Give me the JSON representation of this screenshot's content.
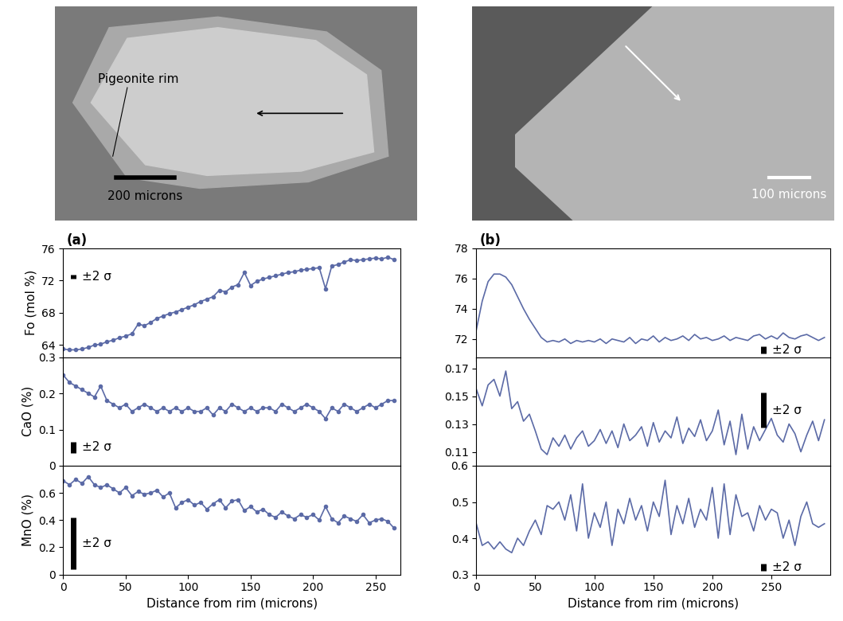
{
  "images": [
    {
      "annotation": "Pigeonite rim",
      "scale_bar": "200 microns"
    },
    {
      "scale_bar": "100 microns"
    }
  ],
  "chart_data": [
    {
      "type": "line",
      "title": "(a)",
      "y_label": "Fo (mol %)",
      "color": "#5b6aa6",
      "marker": "o",
      "xlim": [
        0,
        270
      ],
      "xticks": [
        0,
        50,
        100,
        150,
        200,
        250
      ],
      "ylim": [
        62.5,
        76
      ],
      "yticks": [
        64,
        68,
        72,
        76
      ],
      "error_bar": {
        "label": "±2 σ",
        "value": 0.5
      },
      "x": [
        0,
        5,
        10,
        15,
        20,
        25,
        30,
        35,
        40,
        45,
        50,
        55,
        60,
        65,
        70,
        75,
        80,
        85,
        90,
        95,
        100,
        105,
        110,
        115,
        120,
        125,
        130,
        135,
        140,
        145,
        150,
        155,
        160,
        165,
        170,
        175,
        180,
        185,
        190,
        195,
        200,
        205,
        210,
        215,
        220,
        225,
        230,
        235,
        240,
        245,
        250,
        255,
        260,
        265
      ],
      "values": [
        63.5,
        63.4,
        63.4,
        63.5,
        63.7,
        64.0,
        64.1,
        64.4,
        64.6,
        64.9,
        65.1,
        65.4,
        66.6,
        66.4,
        66.8,
        67.3,
        67.6,
        67.9,
        68.1,
        68.4,
        68.7,
        69.0,
        69.4,
        69.7,
        70.0,
        70.8,
        70.6,
        71.2,
        71.5,
        73.0,
        71.4,
        71.9,
        72.2,
        72.4,
        72.6,
        72.8,
        73.0,
        73.1,
        73.3,
        73.4,
        73.5,
        73.6,
        71.0,
        73.8,
        74.0,
        74.3,
        74.6,
        74.5,
        74.6,
        74.7,
        74.8,
        74.7,
        74.9,
        74.6
      ]
    },
    {
      "type": "line",
      "y_label": "CaO (%)",
      "color": "#5b6aa6",
      "marker": "o",
      "xlim": [
        0,
        270
      ],
      "xticks": [
        0,
        50,
        100,
        150,
        200,
        250
      ],
      "ylim": [
        0,
        0.3
      ],
      "yticks": [
        0,
        0.1,
        0.2,
        0.3
      ],
      "error_bar": {
        "label": "±2 σ",
        "value": 0.03
      },
      "x": [
        0,
        5,
        10,
        15,
        20,
        25,
        30,
        35,
        40,
        45,
        50,
        55,
        60,
        65,
        70,
        75,
        80,
        85,
        90,
        95,
        100,
        105,
        110,
        115,
        120,
        125,
        130,
        135,
        140,
        145,
        150,
        155,
        160,
        165,
        170,
        175,
        180,
        185,
        190,
        195,
        200,
        205,
        210,
        215,
        220,
        225,
        230,
        235,
        240,
        245,
        250,
        255,
        260,
        265
      ],
      "values": [
        0.25,
        0.23,
        0.22,
        0.21,
        0.2,
        0.19,
        0.22,
        0.18,
        0.17,
        0.16,
        0.17,
        0.15,
        0.16,
        0.17,
        0.16,
        0.15,
        0.16,
        0.15,
        0.16,
        0.15,
        0.16,
        0.15,
        0.15,
        0.16,
        0.14,
        0.16,
        0.15,
        0.17,
        0.16,
        0.15,
        0.16,
        0.15,
        0.16,
        0.16,
        0.15,
        0.17,
        0.16,
        0.15,
        0.16,
        0.17,
        0.16,
        0.15,
        0.13,
        0.16,
        0.15,
        0.17,
        0.16,
        0.15,
        0.16,
        0.17,
        0.16,
        0.17,
        0.18,
        0.18
      ]
    },
    {
      "type": "line",
      "y_label": "MnO (%)",
      "x_label": "Distance from rim (microns)",
      "color": "#5b6aa6",
      "marker": "o",
      "xlim": [
        0,
        270
      ],
      "xticks": [
        0,
        50,
        100,
        150,
        200,
        250
      ],
      "ylim": [
        0,
        0.8
      ],
      "yticks": [
        0,
        0.2,
        0.4,
        0.6
      ],
      "error_bar": {
        "label": "±2 σ",
        "value": 0.38
      },
      "x": [
        0,
        5,
        10,
        15,
        20,
        25,
        30,
        35,
        40,
        45,
        50,
        55,
        60,
        65,
        70,
        75,
        80,
        85,
        90,
        95,
        100,
        105,
        110,
        115,
        120,
        125,
        130,
        135,
        140,
        145,
        150,
        155,
        160,
        165,
        170,
        175,
        180,
        185,
        190,
        195,
        200,
        205,
        210,
        215,
        220,
        225,
        230,
        235,
        240,
        245,
        250,
        255,
        260,
        265
      ],
      "values": [
        0.69,
        0.66,
        0.7,
        0.67,
        0.72,
        0.66,
        0.64,
        0.66,
        0.63,
        0.6,
        0.64,
        0.58,
        0.61,
        0.59,
        0.6,
        0.62,
        0.57,
        0.6,
        0.49,
        0.53,
        0.55,
        0.51,
        0.53,
        0.48,
        0.52,
        0.55,
        0.49,
        0.54,
        0.55,
        0.47,
        0.5,
        0.46,
        0.48,
        0.44,
        0.42,
        0.46,
        0.43,
        0.41,
        0.44,
        0.42,
        0.44,
        0.4,
        0.5,
        0.41,
        0.38,
        0.43,
        0.41,
        0.39,
        0.44,
        0.38,
        0.4,
        0.41,
        0.39,
        0.34
      ]
    },
    {
      "type": "line",
      "title": "(b)",
      "color": "#5b6aa6",
      "xlim": [
        0,
        300
      ],
      "xticks": [
        0,
        50,
        100,
        150,
        200,
        250
      ],
      "ylim": [
        70.8,
        78
      ],
      "yticks": [
        72,
        74,
        76,
        78
      ],
      "error_bar": {
        "label": "±2 σ",
        "value": 0.5
      },
      "x": [
        0,
        5,
        10,
        15,
        20,
        25,
        30,
        35,
        40,
        45,
        50,
        55,
        60,
        65,
        70,
        75,
        80,
        85,
        90,
        95,
        100,
        105,
        110,
        115,
        120,
        125,
        130,
        135,
        140,
        145,
        150,
        155,
        160,
        165,
        170,
        175,
        180,
        185,
        190,
        195,
        200,
        205,
        210,
        215,
        220,
        225,
        230,
        235,
        240,
        245,
        250,
        255,
        260,
        265,
        270,
        275,
        280,
        285,
        290,
        295
      ],
      "values": [
        72.6,
        74.5,
        75.8,
        76.3,
        76.3,
        76.1,
        75.6,
        74.8,
        74.0,
        73.3,
        72.7,
        72.1,
        71.8,
        71.9,
        71.8,
        72.0,
        71.7,
        71.9,
        71.8,
        71.9,
        71.8,
        72.0,
        71.7,
        72.0,
        71.9,
        71.8,
        72.1,
        71.7,
        72.0,
        71.9,
        72.2,
        71.8,
        72.1,
        71.9,
        72.0,
        72.2,
        71.9,
        72.3,
        72.0,
        72.1,
        71.9,
        72.0,
        72.2,
        71.9,
        72.1,
        72.0,
        71.9,
        72.2,
        72.3,
        72.0,
        72.2,
        72.0,
        72.4,
        72.1,
        72.0,
        72.2,
        72.3,
        72.1,
        71.9,
        72.1
      ]
    },
    {
      "type": "line",
      "color": "#5b6aa6",
      "xlim": [
        0,
        300
      ],
      "xticks": [
        0,
        50,
        100,
        150,
        200,
        250
      ],
      "ylim": [
        0.1,
        0.178
      ],
      "yticks": [
        0.11,
        0.13,
        0.15,
        0.17
      ],
      "error_bar": {
        "label": "±2 σ",
        "value": 0.025
      },
      "x": [
        0,
        5,
        10,
        15,
        20,
        25,
        30,
        35,
        40,
        45,
        50,
        55,
        60,
        65,
        70,
        75,
        80,
        85,
        90,
        95,
        100,
        105,
        110,
        115,
        120,
        125,
        130,
        135,
        140,
        145,
        150,
        155,
        160,
        165,
        170,
        175,
        180,
        185,
        190,
        195,
        200,
        205,
        210,
        215,
        220,
        225,
        230,
        235,
        240,
        245,
        250,
        255,
        260,
        265,
        270,
        275,
        280,
        285,
        290,
        295
      ],
      "values": [
        0.155,
        0.143,
        0.158,
        0.162,
        0.15,
        0.168,
        0.141,
        0.146,
        0.132,
        0.137,
        0.125,
        0.112,
        0.108,
        0.12,
        0.114,
        0.122,
        0.112,
        0.12,
        0.125,
        0.114,
        0.118,
        0.126,
        0.116,
        0.125,
        0.113,
        0.13,
        0.118,
        0.122,
        0.128,
        0.114,
        0.131,
        0.117,
        0.125,
        0.12,
        0.135,
        0.116,
        0.127,
        0.121,
        0.133,
        0.118,
        0.125,
        0.14,
        0.115,
        0.132,
        0.108,
        0.137,
        0.112,
        0.128,
        0.118,
        0.126,
        0.134,
        0.122,
        0.117,
        0.13,
        0.123,
        0.11,
        0.122,
        0.132,
        0.118,
        0.133
      ]
    },
    {
      "type": "line",
      "x_label": "Distance from rim (microns)",
      "color": "#5b6aa6",
      "xlim": [
        0,
        300
      ],
      "xticks": [
        0,
        50,
        100,
        150,
        200,
        250
      ],
      "ylim": [
        0.3,
        0.6
      ],
      "yticks": [
        0.3,
        0.4,
        0.5,
        0.6
      ],
      "error_bar": {
        "label": "±2 σ",
        "value": 0.02
      },
      "x": [
        0,
        5,
        10,
        15,
        20,
        25,
        30,
        35,
        40,
        45,
        50,
        55,
        60,
        65,
        70,
        75,
        80,
        85,
        90,
        95,
        100,
        105,
        110,
        115,
        120,
        125,
        130,
        135,
        140,
        145,
        150,
        155,
        160,
        165,
        170,
        175,
        180,
        185,
        190,
        195,
        200,
        205,
        210,
        215,
        220,
        225,
        230,
        235,
        240,
        245,
        250,
        255,
        260,
        265,
        270,
        275,
        280,
        285,
        290,
        295
      ],
      "values": [
        0.44,
        0.38,
        0.39,
        0.37,
        0.39,
        0.37,
        0.36,
        0.4,
        0.38,
        0.42,
        0.45,
        0.41,
        0.49,
        0.48,
        0.5,
        0.45,
        0.52,
        0.42,
        0.55,
        0.4,
        0.47,
        0.43,
        0.5,
        0.38,
        0.48,
        0.44,
        0.51,
        0.45,
        0.49,
        0.42,
        0.5,
        0.46,
        0.56,
        0.41,
        0.49,
        0.44,
        0.51,
        0.43,
        0.48,
        0.45,
        0.54,
        0.4,
        0.55,
        0.41,
        0.52,
        0.46,
        0.47,
        0.42,
        0.49,
        0.45,
        0.48,
        0.47,
        0.4,
        0.45,
        0.38,
        0.46,
        0.5,
        0.44,
        0.43,
        0.44
      ]
    }
  ]
}
